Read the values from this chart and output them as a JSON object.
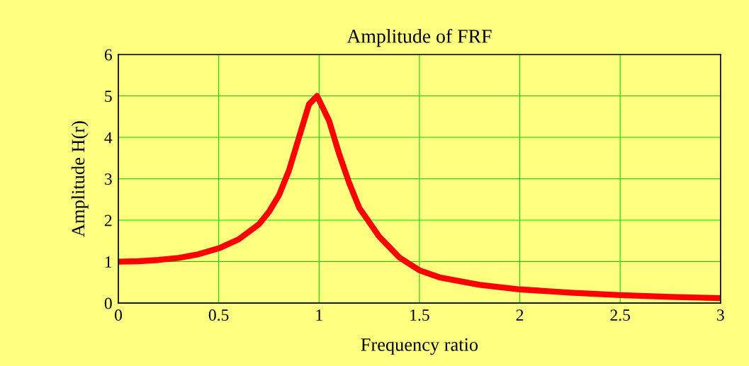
{
  "chart_data": {
    "type": "line",
    "title": "Amplitude of FRF",
    "xlabel": "Frequency ratio",
    "ylabel": "Amplitude H(r)",
    "x": [
      0,
      0.1,
      0.2,
      0.3,
      0.4,
      0.5,
      0.6,
      0.7,
      0.75,
      0.8,
      0.85,
      0.9,
      0.95,
      0.99,
      1.05,
      1.1,
      1.15,
      1.2,
      1.3,
      1.4,
      1.5,
      1.6,
      1.8,
      2.0,
      2.25,
      2.5,
      2.75,
      3.0
    ],
    "series": [
      {
        "color": "#ff0000",
        "values": [
          1,
          1.01,
          1.04,
          1.09,
          1.18,
          1.32,
          1.54,
          1.9,
          2.2,
          2.6,
          3.2,
          4.0,
          4.8,
          5.0,
          4.4,
          3.6,
          2.9,
          2.3,
          1.6,
          1.1,
          0.79,
          0.62,
          0.44,
          0.33,
          0.25,
          0.19,
          0.15,
          0.12
        ]
      }
    ],
    "xlim": [
      0,
      3
    ],
    "xticks": [
      0,
      0.5,
      1,
      1.5,
      2,
      2.5,
      3
    ],
    "ylim": [
      0,
      6
    ],
    "yticks": [
      0,
      1,
      2,
      3,
      4,
      5,
      6
    ],
    "grid": true,
    "legend": false
  }
}
